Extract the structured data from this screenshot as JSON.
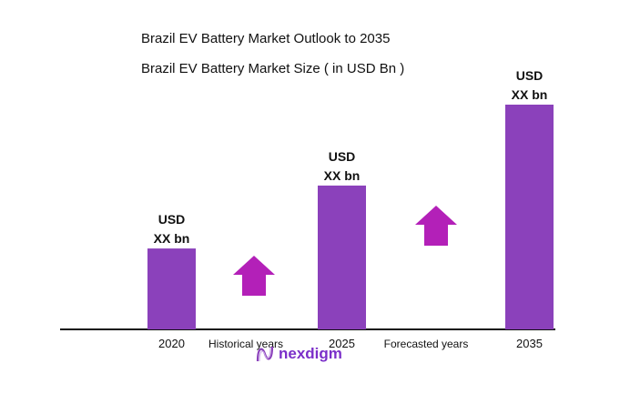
{
  "chart_data": {
    "type": "bar",
    "title": "Brazil EV Battery Market Outlook to 2035",
    "subtitle": "Brazil EV Battery Market Size ( in USD Bn )",
    "categories": [
      "2020",
      "2025",
      "2035"
    ],
    "relative_values": [
      0.36,
      0.64,
      1.0
    ],
    "data_labels": [
      [
        "USD",
        "XX bn"
      ],
      [
        "USD",
        "XX bn"
      ],
      [
        "USD",
        "XX bn"
      ]
    ],
    "annotations": [
      "Historical years",
      "Forecasted years"
    ],
    "xlabel": "",
    "ylabel": "",
    "grid": false,
    "bar_color": "#8B41BB",
    "arrow_color": "#B320B8",
    "arrow_icon": "up-arrow-icon"
  },
  "logo": {
    "text": "nexdigm",
    "color": "#7B2FC9"
  }
}
